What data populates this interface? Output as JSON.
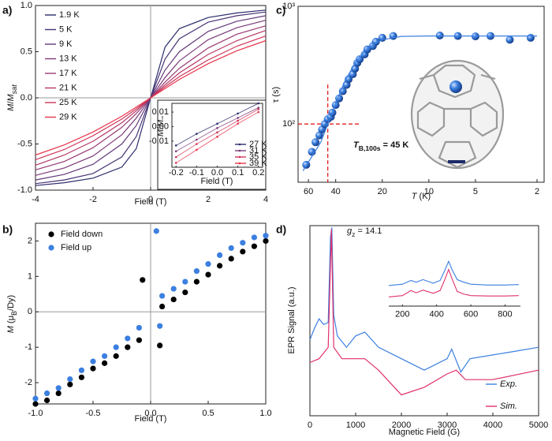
{
  "chart_data": [
    {
      "type": "line",
      "label": "a)",
      "xlabel": [
        {
          "text": "Field (T)"
        }
      ],
      "ylabel": [
        {
          "text": "M",
          "style": "italic"
        },
        {
          "text": "/"
        },
        {
          "text": "M",
          "style": "italic"
        },
        {
          "text": "sat",
          "style": "sub-italic"
        }
      ],
      "xlim": [
        -4,
        4
      ],
      "ylim": [
        -1,
        1
      ],
      "xticks": [
        -4,
        -2,
        0,
        2,
        4
      ],
      "yticks": [
        {
          "value": -1,
          "label": "-1.0"
        },
        -0.5,
        {
          "value": 0,
          "label": "0.0"
        },
        0.5,
        {
          "value": 1,
          "label": "1.0"
        }
      ],
      "zero_axes": true,
      "legend": "upper left",
      "x": [
        -4,
        -3,
        -2,
        -1,
        -0.5,
        0,
        0.5,
        1,
        2,
        3,
        4
      ],
      "series": [
        {
          "name": "1.9 K",
          "color": "#2c2c6c",
          "values": [
            -0.95,
            -0.92,
            -0.87,
            -0.75,
            -0.55,
            0,
            0.55,
            0.75,
            0.87,
            0.92,
            0.95
          ]
        },
        {
          "name": "5 K",
          "color": "#463475",
          "values": [
            -0.93,
            -0.89,
            -0.82,
            -0.64,
            -0.42,
            0,
            0.42,
            0.64,
            0.82,
            0.89,
            0.93
          ]
        },
        {
          "name": "9 K",
          "color": "#62387a",
          "values": [
            -0.89,
            -0.83,
            -0.72,
            -0.5,
            -0.3,
            0,
            0.3,
            0.5,
            0.72,
            0.83,
            0.89
          ]
        },
        {
          "name": "13 K",
          "color": "#7c3a7a",
          "values": [
            -0.84,
            -0.76,
            -0.63,
            -0.4,
            -0.22,
            0,
            0.22,
            0.4,
            0.63,
            0.76,
            0.84
          ]
        },
        {
          "name": "17 K",
          "color": "#983a72",
          "values": [
            -0.78,
            -0.69,
            -0.54,
            -0.32,
            -0.17,
            0,
            0.17,
            0.32,
            0.54,
            0.69,
            0.78
          ]
        },
        {
          "name": "21 K",
          "color": "#b53866",
          "values": [
            -0.73,
            -0.62,
            -0.47,
            -0.27,
            -0.14,
            0,
            0.14,
            0.27,
            0.47,
            0.62,
            0.73
          ]
        },
        {
          "name": "25 K",
          "color": "#cf3558",
          "values": [
            -0.67,
            -0.56,
            -0.41,
            -0.23,
            -0.12,
            0,
            0.12,
            0.23,
            0.41,
            0.56,
            0.67
          ]
        },
        {
          "name": "29 K",
          "color": "#e8344a",
          "values": [
            -0.62,
            -0.51,
            -0.37,
            -0.2,
            -0.1,
            0,
            0.1,
            0.2,
            0.37,
            0.51,
            0.62
          ]
        }
      ],
      "inset": {
        "type": "line",
        "xlabel": [
          {
            "text": "Field (T)"
          }
        ],
        "ylabel": [
          {
            "text": "M",
            "style": "italic"
          },
          {
            "text": "/"
          },
          {
            "text": "M",
            "style": "italic"
          },
          {
            "text": "sat",
            "style": "sub-italic"
          }
        ],
        "xlim": [
          -0.22,
          0.22
        ],
        "ylim": [
          -0.028,
          0.016
        ],
        "xticks": [
          -0.2,
          -0.1,
          {
            "value": 0,
            "label": "0.0"
          },
          0.1,
          0.2
        ],
        "yticks": [
          -0.01,
          {
            "value": 0,
            "label": "0.00"
          },
          0.01
        ],
        "legend": "lower right",
        "markers": true,
        "x": [
          -0.2,
          -0.1,
          0,
          0.1,
          0.2
        ],
        "series": [
          {
            "name": "27 K",
            "color": "#2c2c6c",
            "values": [
              -0.013,
              -0.005,
              0.002,
              0.009,
              0.016
            ]
          },
          {
            "name": "31 K",
            "color": "#7c3a7a",
            "values": [
              -0.017,
              -0.009,
              -0.001,
              0.006,
              0.013
            ]
          },
          {
            "name": "35 K",
            "color": "#cf3558",
            "values": [
              -0.021,
              -0.012,
              -0.004,
              0.004,
              0.012
            ]
          },
          {
            "name": "39 K",
            "color": "#e8344a",
            "values": [
              -0.025,
              -0.016,
              -0.007,
              0.002,
              0.01
            ]
          }
        ]
      }
    },
    {
      "type": "scatter",
      "label": "b)",
      "xlabel": [
        {
          "text": "Field (T)"
        }
      ],
      "ylabel": [
        {
          "text": "M",
          "style": "italic"
        },
        {
          "text": " (μ"
        },
        {
          "text": "B",
          "style": "sub"
        },
        {
          "text": "/Dy)"
        }
      ],
      "xlim": [
        -1,
        1
      ],
      "ylim": [
        -2.6,
        2.5
      ],
      "xticks": [
        {
          "value": -1,
          "label": "-1.0"
        },
        -0.5,
        {
          "value": 0,
          "label": "0.0"
        },
        0.5,
        {
          "value": 1,
          "label": "1.0"
        }
      ],
      "yticks": [
        -2,
        -1,
        0,
        1,
        2
      ],
      "zero_axes": true,
      "legend": "upper left",
      "series": [
        {
          "name": "Field down",
          "color": "#000000",
          "x": [
            -1,
            -0.9,
            -0.8,
            -0.7,
            -0.6,
            -0.5,
            -0.4,
            -0.3,
            -0.2,
            -0.1,
            -0.07,
            0.08,
            0.1,
            0.2,
            0.3,
            0.4,
            0.5,
            0.6,
            0.7,
            0.8,
            0.9,
            1
          ],
          "values": [
            -2.6,
            -2.5,
            -2.3,
            -2.05,
            -1.85,
            -1.6,
            -1.45,
            -1.25,
            -1.0,
            -0.8,
            0.9,
            -0.95,
            0.15,
            0.35,
            0.55,
            0.85,
            1.05,
            1.3,
            1.5,
            1.7,
            1.85,
            2.0
          ]
        },
        {
          "name": "Field up",
          "color": "#3b7fe0",
          "x": [
            -1,
            -0.9,
            -0.8,
            -0.7,
            -0.6,
            -0.5,
            -0.4,
            -0.3,
            -0.2,
            -0.1,
            0.05,
            0.08,
            0.1,
            0.2,
            0.3,
            0.4,
            0.5,
            0.6,
            0.7,
            0.8,
            0.9,
            1
          ],
          "values": [
            -2.45,
            -2.3,
            -2.15,
            -1.9,
            -1.65,
            -1.4,
            -1.25,
            -1.0,
            -0.75,
            -0.45,
            2.28,
            -0.4,
            0.45,
            0.65,
            0.85,
            1.15,
            1.35,
            1.6,
            1.8,
            1.95,
            2.1,
            2.15
          ]
        }
      ]
    },
    {
      "type": "scatter",
      "label": "c)",
      "xlabel": [
        {
          "text": "T",
          "style": "italic"
        },
        {
          "text": " (K)"
        }
      ],
      "ylabel": [
        {
          "text": "τ (s)"
        }
      ],
      "xlog": true,
      "ylog": true,
      "xlim": [
        70,
        1.8
      ],
      "ylim": [
        32,
        1000
      ],
      "xticks": [
        60,
        40,
        20,
        10,
        5,
        2
      ],
      "yticks": [
        {
          "value": 100,
          "label": "10²"
        },
        {
          "value": 1000,
          "label": "10³"
        }
      ],
      "annotation": [
        {
          "text": "T",
          "style": "italic-bold"
        },
        {
          "text": "B,100s",
          "style": "sub-bold"
        },
        {
          "text": " = 45 K",
          "style": "bold"
        }
      ],
      "threshold": {
        "x": 45,
        "y": 100,
        "color": "#e02020"
      },
      "series": [
        {
          "color": "#3b7fe0",
          "style": "sphere",
          "x": [
            62,
            57,
            54,
            51,
            49,
            47,
            45,
            43,
            42,
            40,
            38,
            36,
            34,
            33,
            31,
            30,
            29,
            28,
            26,
            25,
            23,
            22,
            20,
            17,
            8.5,
            6.5,
            5,
            4,
            3,
            2.2
          ],
          "values": [
            45,
            58,
            70,
            80,
            90,
            100,
            110,
            115,
            125,
            145,
            165,
            190,
            215,
            240,
            265,
            295,
            330,
            355,
            390,
            430,
            460,
            500,
            540,
            560,
            565,
            560,
            555,
            560,
            520,
            540
          ]
        },
        {
          "color": "#3b7fe0",
          "style": "line",
          "x": [
            65,
            50,
            45,
            40,
            35,
            30,
            25,
            20,
            15,
            10,
            5,
            2
          ],
          "values": [
            40,
            70,
            100,
            150,
            230,
            330,
            440,
            520,
            555,
            560,
            560,
            560
          ]
        }
      ]
    },
    {
      "type": "line",
      "label": "d)",
      "xlabel": [
        {
          "text": "Magnetic Field (G)"
        }
      ],
      "ylabel": [
        {
          "text": "EPR Signal (a.u.)"
        }
      ],
      "xlim": [
        0,
        5000
      ],
      "ylim": [
        0,
        10
      ],
      "xticks": [
        0,
        1000,
        2000,
        3000,
        4000,
        5000
      ],
      "legend": "lower right",
      "legend_italic": true,
      "annotation": [
        {
          "text": "g",
          "style": "italic"
        },
        {
          "text": "z",
          "style": "sub"
        },
        {
          "text": " = 14.1"
        }
      ],
      "series": [
        {
          "name": "Exp.",
          "color": "#3b7fe0",
          "x": [
            0,
            100,
            200,
            300,
            400,
            450,
            480,
            520,
            600,
            800,
            1000,
            1200,
            1500,
            2000,
            2500,
            3000,
            3100,
            3300,
            3500,
            4000,
            4500,
            5000
          ],
          "values": [
            4.0,
            4.6,
            5.1,
            4.8,
            4.9,
            9.4,
            9.9,
            5.3,
            4.2,
            3.6,
            4.2,
            4.4,
            3.6,
            3.0,
            2.4,
            3.0,
            3.5,
            2.3,
            3.0,
            3.2,
            3.4,
            3.6
          ]
        },
        {
          "name": "Sim.",
          "color": "#e0306a",
          "x": [
            0,
            200,
            400,
            470,
            520,
            700,
            1000,
            1200,
            1500,
            2000,
            2500,
            3000,
            3200,
            3400,
            4000,
            5000
          ],
          "values": [
            2.8,
            3.0,
            3.6,
            9.8,
            3.6,
            3.0,
            3.0,
            3.0,
            2.4,
            1.1,
            1.5,
            2.2,
            2.4,
            1.9,
            1.9,
            2.4
          ]
        }
      ],
      "inset": {
        "type": "line",
        "xlim": [
          120,
          890
        ],
        "ylim": [
          0,
          10
        ],
        "xticks": [
          200,
          400,
          600,
          800
        ],
        "series": [
          {
            "color": "#3b7fe0",
            "x": [
              120,
              200,
              250,
              280,
              320,
              380,
              420,
              450,
              470,
              490,
              520,
              560,
              600,
              700,
              800,
              880
            ],
            "values": [
              4.5,
              4.8,
              5.6,
              5.2,
              5.8,
              5.0,
              5.6,
              8.0,
              9.8,
              8.0,
              5.8,
              5.2,
              4.8,
              4.6,
              4.6,
              4.7
            ]
          },
          {
            "color": "#e0306a",
            "x": [
              120,
              200,
              250,
              280,
              320,
              380,
              420,
              450,
              470,
              490,
              520,
              560,
              600,
              700,
              800,
              880
            ],
            "values": [
              2.0,
              2.3,
              3.4,
              2.9,
              3.5,
              2.8,
              3.4,
              6.0,
              8.0,
              6.0,
              3.2,
              2.6,
              2.3,
              2.2,
              2.2,
              2.3
            ]
          }
        ]
      }
    }
  ]
}
